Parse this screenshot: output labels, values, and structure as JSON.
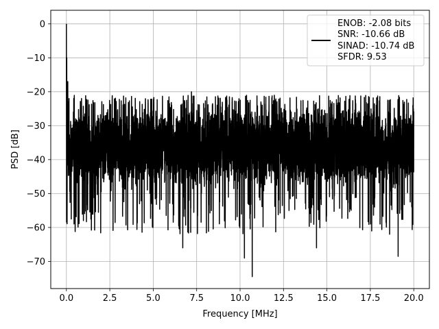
{
  "chart_data": {
    "type": "line",
    "xlabel": "Frequency [MHz]",
    "ylabel": "PSD [dB]",
    "xlim": [
      -0.9,
      20.9
    ],
    "ylim": [
      -78,
      4
    ],
    "xticks": [
      0.0,
      2.5,
      5.0,
      7.5,
      10.0,
      12.5,
      15.0,
      17.5,
      20.0
    ],
    "xtick_labels": [
      "0.0",
      "2.5",
      "5.0",
      "7.5",
      "10.0",
      "12.5",
      "15.0",
      "17.5",
      "20.0"
    ],
    "yticks": [
      0,
      -10,
      -20,
      -30,
      -40,
      -50,
      -60,
      -70
    ],
    "ytick_labels": [
      "0",
      "−10",
      "−20",
      "−30",
      "−40",
      "−50",
      "−60",
      "−70"
    ],
    "grid": true,
    "legend_position": "top-right",
    "legend_lines": [
      "ENOB: -2.08 bits",
      "SNR: -10.66 dB",
      "SINAD: -10.74 dB",
      "SFDR: 9.53"
    ],
    "series_color": "#000000",
    "series": [
      {
        "name": "",
        "x_range": [
          0,
          20
        ],
        "points": 4000,
        "peak": {
          "x": 0.0,
          "y": 0.0
        },
        "noise_floor_center": -36,
        "upper_envelope": -24,
        "lower_envelope": -48,
        "notable_points": [
          {
            "x": 0.02,
            "y": -10
          },
          {
            "x": 0.08,
            "y": -17
          },
          {
            "x": 0.15,
            "y": -22
          },
          {
            "x": 7.2,
            "y": -20
          },
          {
            "x": 6.7,
            "y": -66
          },
          {
            "x": 10.25,
            "y": -69
          },
          {
            "x": 10.7,
            "y": -74.5
          },
          {
            "x": 14.4,
            "y": -66
          },
          {
            "x": 19.1,
            "y": -68.5
          },
          {
            "x": 19.95,
            "y": -24
          }
        ]
      }
    ]
  }
}
